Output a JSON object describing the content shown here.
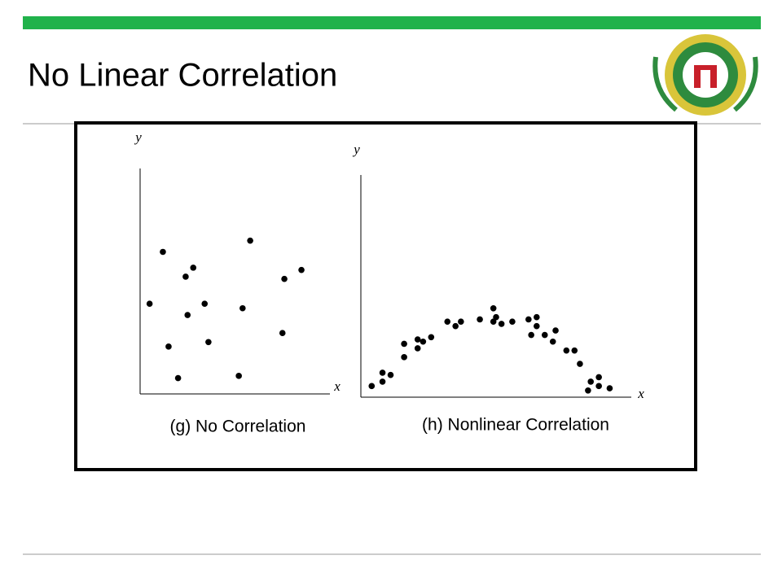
{
  "title": "No Linear Correlation",
  "chart_data": [
    {
      "type": "scatter",
      "title": "(g) No Correlation",
      "x_label": "x",
      "y_label": "y",
      "color": "#000000",
      "xlim": [
        0,
        10
      ],
      "ylim": [
        0,
        10
      ],
      "x": [
        1.2,
        2.8,
        2.4,
        5.8,
        8.5,
        7.6,
        0.5,
        3.4,
        2.5,
        5.4,
        7.5,
        1.5,
        3.6,
        2.0,
        5.2
      ],
      "values": [
        6.3,
        5.6,
        5.2,
        6.8,
        5.5,
        5.1,
        4.0,
        4.0,
        3.5,
        3.8,
        2.7,
        2.1,
        2.3,
        0.7,
        0.8
      ]
    },
    {
      "type": "scatter",
      "title": "(h) Nonlinear Correlation",
      "x_label": "x",
      "y_label": "y",
      "color": "#000000",
      "xlim": [
        0,
        10
      ],
      "ylim": [
        0,
        10
      ],
      "x": [
        0.4,
        0.8,
        0.8,
        1.1,
        1.6,
        1.6,
        2.1,
        2.1,
        2.3,
        2.6,
        3.2,
        3.5,
        3.7,
        4.4,
        4.9,
        4.9,
        5.0,
        5.2,
        5.6,
        6.2,
        6.5,
        6.5,
        6.3,
        6.8,
        7.2,
        7.1,
        7.6,
        7.9,
        8.1,
        8.5,
        8.8,
        8.4,
        8.8,
        9.2
      ],
      "values": [
        0.5,
        0.7,
        1.1,
        1.0,
        1.8,
        2.4,
        2.2,
        2.6,
        2.5,
        2.7,
        3.4,
        3.2,
        3.4,
        3.5,
        4.0,
        3.4,
        3.6,
        3.3,
        3.4,
        3.5,
        3.6,
        3.2,
        2.8,
        2.8,
        3.0,
        2.5,
        2.1,
        2.1,
        1.5,
        0.7,
        0.9,
        0.3,
        0.5,
        0.4
      ]
    }
  ]
}
